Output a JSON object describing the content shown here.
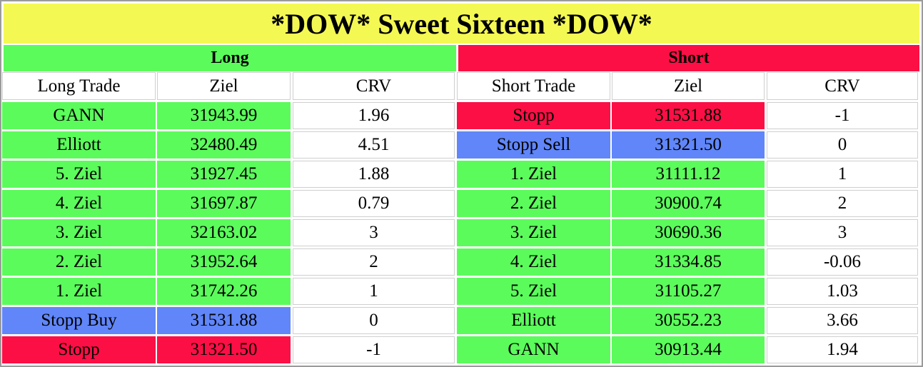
{
  "title": "*DOW* Sweet Sixteen *DOW*",
  "sections": {
    "long": "Long",
    "short": "Short"
  },
  "long": {
    "headers": [
      "Long Trade",
      "Ziel",
      "CRV"
    ],
    "rows": [
      {
        "label": "GANN",
        "ziel": "31943.99",
        "crv": "1.96",
        "color": "green"
      },
      {
        "label": "Elliott",
        "ziel": "32480.49",
        "crv": "4.51",
        "color": "green"
      },
      {
        "label": "5. Ziel",
        "ziel": "31927.45",
        "crv": "1.88",
        "color": "green"
      },
      {
        "label": "4. Ziel",
        "ziel": "31697.87",
        "crv": "0.79",
        "color": "green"
      },
      {
        "label": "3. Ziel",
        "ziel": "32163.02",
        "crv": "3",
        "color": "green"
      },
      {
        "label": "2. Ziel",
        "ziel": "31952.64",
        "crv": "2",
        "color": "green"
      },
      {
        "label": "1. Ziel",
        "ziel": "31742.26",
        "crv": "1",
        "color": "green"
      },
      {
        "label": "Stopp Buy",
        "ziel": "31531.88",
        "crv": "0",
        "color": "blue"
      },
      {
        "label": "Stopp",
        "ziel": "31321.50",
        "crv": "-1",
        "color": "red"
      }
    ]
  },
  "short": {
    "headers": [
      "Short Trade",
      "Ziel",
      "CRV"
    ],
    "rows": [
      {
        "label": "Stopp",
        "ziel": "31531.88",
        "crv": "-1",
        "color": "red"
      },
      {
        "label": "Stopp Sell",
        "ziel": "31321.50",
        "crv": "0",
        "color": "blue"
      },
      {
        "label": "1. Ziel",
        "ziel": "31111.12",
        "crv": "1",
        "color": "green"
      },
      {
        "label": "2. Ziel",
        "ziel": "30900.74",
        "crv": "2",
        "color": "green"
      },
      {
        "label": "3. Ziel",
        "ziel": "30690.36",
        "crv": "3",
        "color": "green"
      },
      {
        "label": "4. Ziel",
        "ziel": "31334.85",
        "crv": "-0.06",
        "color": "green"
      },
      {
        "label": "5. Ziel",
        "ziel": "31105.27",
        "crv": "1.03",
        "color": "green"
      },
      {
        "label": "Elliott",
        "ziel": "30552.23",
        "crv": "3.66",
        "color": "green"
      },
      {
        "label": "GANN",
        "ziel": "30913.44",
        "crv": "1.94",
        "color": "green"
      }
    ]
  },
  "colors": {
    "green": "#5bfb5b",
    "red": "#fc0f45",
    "blue": "#6086f9",
    "yellow": "#f4f853"
  }
}
